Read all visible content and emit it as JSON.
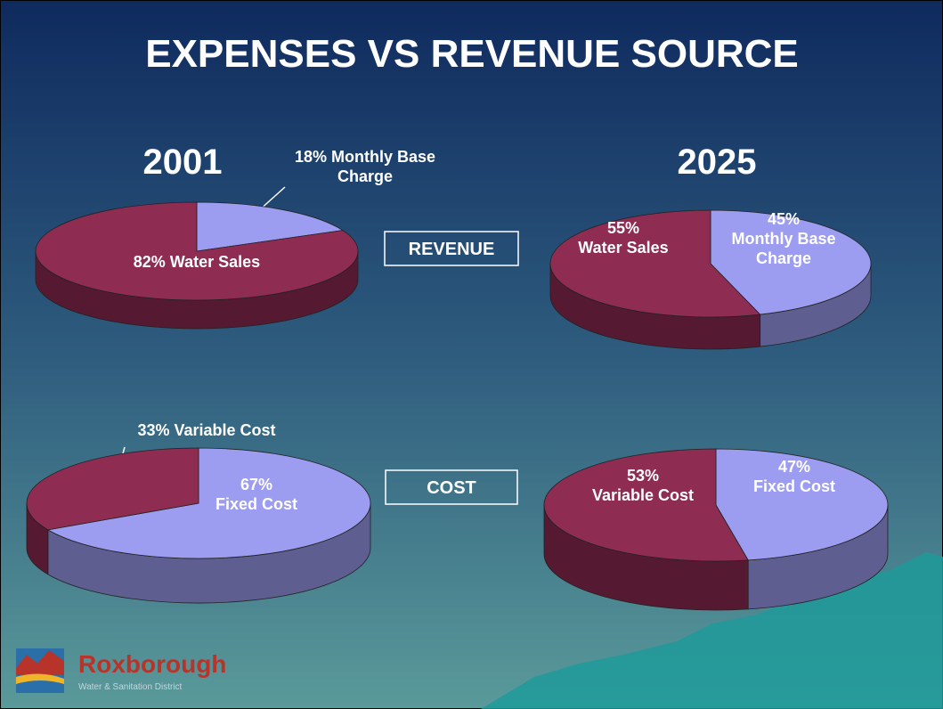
{
  "slide": {
    "title": "EXPENSES VS REVENUE SOURCE",
    "columns": [
      "2001",
      "2025"
    ],
    "row_labels": [
      "REVENUE",
      "COST"
    ],
    "logo": {
      "name": "Roxborough",
      "tagline": "Water & Sanitation District"
    }
  },
  "chart_data": [
    {
      "type": "pie",
      "values": [
        18,
        82
      ],
      "value_labels": [
        [
          "18% Monthly Base",
          "Charge"
        ],
        [
          "82% Water Sales"
        ]
      ],
      "colors": [
        "#9c9cf0",
        "#8e2c52"
      ]
    },
    {
      "type": "pie",
      "values": [
        45,
        55
      ],
      "value_labels": [
        [
          "45%",
          "Monthly Base",
          "Charge"
        ],
        [
          "55%",
          "Water Sales"
        ]
      ],
      "colors": [
        "#9c9cf0",
        "#8e2c52"
      ]
    },
    {
      "type": "pie",
      "values": [
        67,
        33
      ],
      "value_labels": [
        [
          "67%",
          "Fixed Cost"
        ],
        [
          "33% Variable Cost"
        ]
      ],
      "colors": [
        "#9c9cf0",
        "#8e2c52"
      ]
    },
    {
      "type": "pie",
      "values": [
        47,
        53
      ],
      "value_labels": [
        [
          "47%",
          "Fixed Cost"
        ],
        [
          "53%",
          "Variable Cost"
        ]
      ],
      "colors": [
        "#9c9cf0",
        "#8e2c52"
      ]
    }
  ]
}
